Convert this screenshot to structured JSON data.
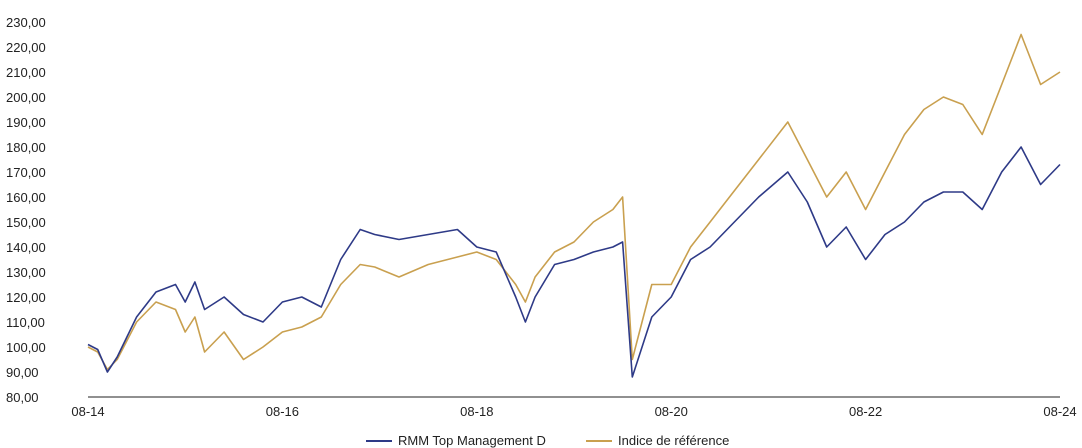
{
  "chart_data": {
    "type": "line",
    "title": "",
    "xlabel": "",
    "ylabel": "",
    "ylim": [
      80,
      230
    ],
    "yticks": [
      "230,00",
      "220,00",
      "210,00",
      "200,00",
      "190,00",
      "180,00",
      "170,00",
      "160,00",
      "150,00",
      "140,00",
      "130,00",
      "120,00",
      "110,00",
      "100,00",
      "90,00",
      "80,00"
    ],
    "xlim": [
      2014.0,
      2024.0
    ],
    "xticks": [
      "08-14",
      "08-16",
      "08-18",
      "08-20",
      "08-22",
      "08-24"
    ],
    "legend_position": "bottom-center",
    "series": [
      {
        "name": "RMM Top Management D",
        "color": "#2e3a87",
        "x": [
          2014.0,
          2014.1,
          2014.2,
          2014.3,
          2014.5,
          2014.7,
          2014.9,
          2015.0,
          2015.1,
          2015.2,
          2015.4,
          2015.6,
          2015.8,
          2016.0,
          2016.2,
          2016.4,
          2016.6,
          2016.8,
          2016.95,
          2017.2,
          2017.5,
          2017.8,
          2018.0,
          2018.2,
          2018.4,
          2018.5,
          2018.6,
          2018.8,
          2019.0,
          2019.2,
          2019.4,
          2019.5,
          2019.6,
          2019.8,
          2020.0,
          2020.2,
          2020.4,
          2020.6,
          2020.9,
          2021.2,
          2021.4,
          2021.6,
          2021.8,
          2022.0,
          2022.2,
          2022.4,
          2022.6,
          2022.8,
          2023.0,
          2023.2,
          2023.4,
          2023.6,
          2023.8,
          2024.0
        ],
        "y": [
          101,
          99,
          90,
          96,
          112,
          122,
          125,
          118,
          126,
          115,
          120,
          113,
          110,
          118,
          120,
          116,
          135,
          147,
          145,
          143,
          145,
          147,
          140,
          138,
          120,
          110,
          120,
          133,
          135,
          138,
          140,
          142,
          88,
          112,
          120,
          135,
          140,
          148,
          160,
          170,
          158,
          140,
          148,
          135,
          145,
          150,
          158,
          162,
          162,
          155,
          170,
          180,
          165,
          173
        ]
      },
      {
        "name": "Indice de référence",
        "color": "#c9a04f",
        "x": [
          2014.0,
          2014.1,
          2014.2,
          2014.3,
          2014.5,
          2014.7,
          2014.9,
          2015.0,
          2015.1,
          2015.2,
          2015.4,
          2015.6,
          2015.8,
          2016.0,
          2016.2,
          2016.4,
          2016.6,
          2016.8,
          2016.95,
          2017.2,
          2017.5,
          2017.8,
          2018.0,
          2018.2,
          2018.4,
          2018.5,
          2018.6,
          2018.8,
          2019.0,
          2019.2,
          2019.4,
          2019.5,
          2019.6,
          2019.8,
          2020.0,
          2020.2,
          2020.4,
          2020.6,
          2020.9,
          2021.2,
          2021.4,
          2021.6,
          2021.8,
          2022.0,
          2022.2,
          2022.4,
          2022.6,
          2022.8,
          2023.0,
          2023.2,
          2023.4,
          2023.6,
          2023.8,
          2024.0
        ],
        "y": [
          100,
          98,
          91,
          95,
          110,
          118,
          115,
          106,
          112,
          98,
          106,
          95,
          100,
          106,
          108,
          112,
          125,
          133,
          132,
          128,
          133,
          136,
          138,
          135,
          125,
          118,
          128,
          138,
          142,
          150,
          155,
          160,
          95,
          125,
          125,
          140,
          150,
          160,
          175,
          190,
          175,
          160,
          170,
          155,
          170,
          185,
          195,
          200,
          197,
          185,
          205,
          225,
          205,
          210
        ]
      }
    ]
  }
}
